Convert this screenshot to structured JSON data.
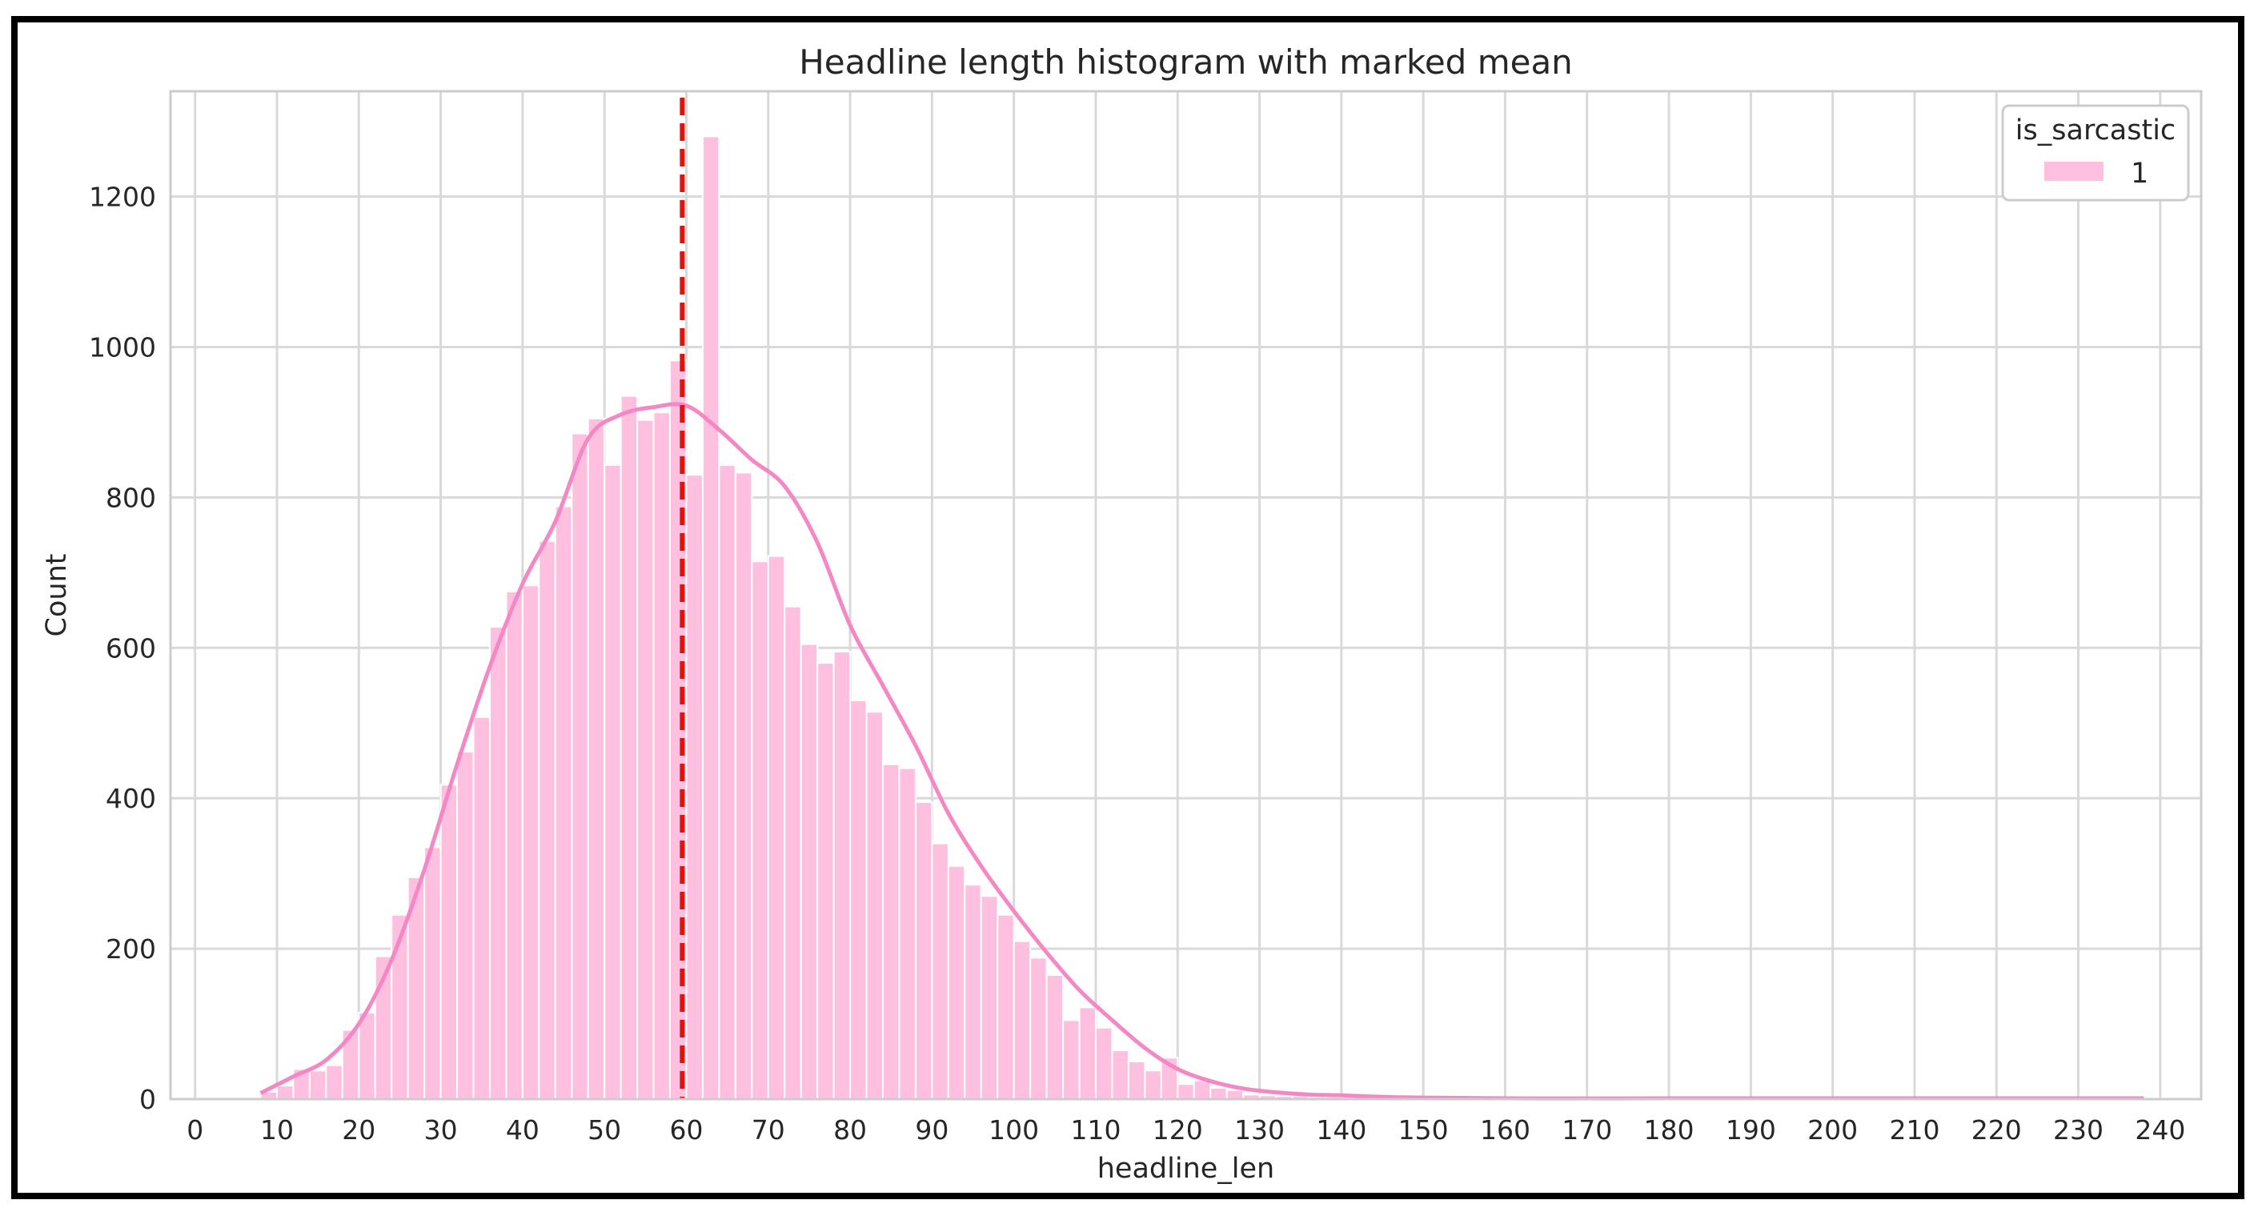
{
  "chart_data": {
    "type": "bar",
    "title": "Headline length histogram with marked mean",
    "xlabel": "headline_len",
    "ylabel": "Count",
    "xlim": [
      -3,
      245
    ],
    "ylim": [
      0,
      1340
    ],
    "x_ticks": [
      0,
      10,
      20,
      30,
      40,
      50,
      60,
      70,
      80,
      90,
      100,
      110,
      120,
      130,
      140,
      150,
      160,
      170,
      180,
      190,
      200,
      210,
      220,
      230,
      240
    ],
    "y_ticks": [
      0,
      200,
      400,
      600,
      800,
      1000,
      1200
    ],
    "grid": true,
    "bin_start": 8,
    "bin_width": 2,
    "series": [
      {
        "name": "1",
        "color": "#ffc0e0",
        "kde_color": "#f487c4",
        "values": [
          10,
          18,
          40,
          38,
          45,
          92,
          115,
          190,
          245,
          295,
          335,
          418,
          462,
          508,
          628,
          675,
          683,
          742,
          788,
          885,
          905,
          843,
          935,
          903,
          913,
          982,
          830,
          1280,
          843,
          833,
          715,
          722,
          655,
          605,
          580,
          595,
          530,
          515,
          445,
          440,
          395,
          340,
          310,
          285,
          270,
          245,
          210,
          188,
          165,
          105,
          122,
          95,
          65,
          50,
          38,
          55,
          20,
          25,
          15,
          12,
          6,
          5,
          4,
          4,
          3,
          3,
          2,
          2,
          2,
          2,
          1,
          1,
          1,
          1,
          1,
          1,
          1,
          1,
          1,
          1,
          1,
          1,
          1,
          1,
          1,
          1,
          1,
          1,
          1,
          1,
          1,
          1,
          1,
          1,
          1,
          1,
          1,
          1,
          1,
          1,
          1,
          1,
          1,
          1,
          1,
          1,
          1,
          1,
          1,
          1,
          1,
          1,
          1,
          1,
          1,
          1
        ]
      }
    ],
    "kde": {
      "x": [
        8,
        12,
        16,
        20,
        24,
        28,
        32,
        36,
        40,
        44,
        48,
        52,
        56,
        60,
        64,
        68,
        72,
        76,
        80,
        84,
        88,
        92,
        96,
        100,
        104,
        108,
        112,
        116,
        120,
        124,
        128,
        132,
        136,
        140,
        145,
        150,
        160,
        180,
        200,
        220,
        238
      ],
      "y": [
        8,
        30,
        52,
        100,
        185,
        305,
        445,
        575,
        685,
        768,
        878,
        910,
        920,
        922,
        890,
        850,
        815,
        740,
        630,
        550,
        470,
        380,
        310,
        250,
        195,
        145,
        105,
        68,
        40,
        24,
        14,
        9,
        6,
        5,
        3,
        2,
        1,
        1,
        1,
        1,
        1
      ]
    },
    "mean_line": {
      "x": 59.5,
      "color": "#e0130d",
      "style": "dashed"
    },
    "legend": {
      "title": "is_sarcastic",
      "entries": [
        "1"
      ],
      "placement": "top-right"
    }
  }
}
